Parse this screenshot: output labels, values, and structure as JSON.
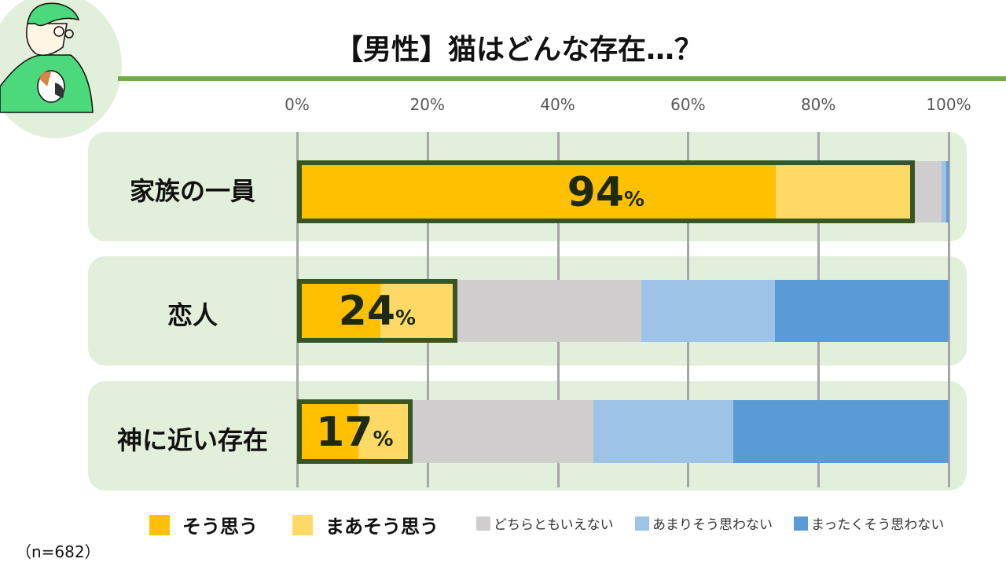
{
  "title": "【男性】猫はどんな存在…？",
  "sample": "（n=682）",
  "chart_data": {
    "type": "bar",
    "orientation": "horizontal",
    "stacked": true,
    "title": "【男性】猫はどんな存在…？",
    "xlim": [
      0,
      100
    ],
    "xticks": [
      "0%",
      "20%",
      "40%",
      "60%",
      "80%",
      "100%"
    ],
    "categories": [
      "家族の一員",
      "恋人",
      "神に近い存在"
    ],
    "series": [
      {
        "name": "そう思う",
        "color": "#FFC000",
        "values": [
          73.5,
          12.8,
          9.4
        ]
      },
      {
        "name": "まあそう思う",
        "color": "#FFD966",
        "values": [
          20.8,
          11.3,
          7.8
        ]
      },
      {
        "name": "どちらともいえない",
        "color": "#D0CECE",
        "values": [
          4.6,
          28.7,
          28.3
        ]
      },
      {
        "name": "あまりそう思わない",
        "color": "#9DC3E6",
        "values": [
          0.7,
          20.5,
          21.4
        ]
      },
      {
        "name": "まったくそう思わない",
        "color": "#5B9BD5",
        "values": [
          0.4,
          26.7,
          33.1
        ]
      }
    ],
    "highlight_labels": [
      {
        "num": "94",
        "unit": "%"
      },
      {
        "num": "24",
        "unit": "%"
      },
      {
        "num": "17",
        "unit": "%"
      }
    ],
    "highlight_color": "#375623",
    "legend": "bottom"
  }
}
